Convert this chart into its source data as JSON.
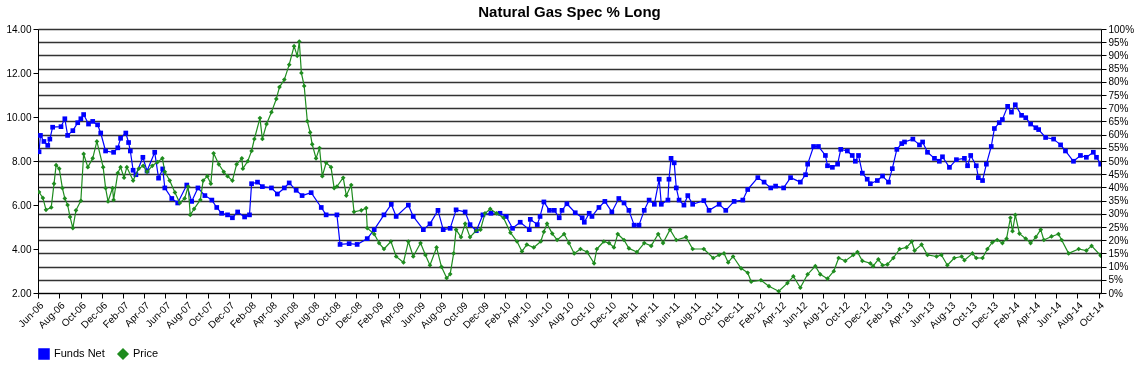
{
  "chart_data": {
    "type": "line",
    "title": "Natural Gas Spec % Long",
    "xlim": [
      "2006-06-01",
      "2014-10-08"
    ],
    "xticks": [
      {
        "value": "2006-06-01",
        "label": "Jun-06"
      },
      {
        "value": "2006-08-01",
        "label": "Aug-06"
      },
      {
        "value": "2006-10-01",
        "label": "Oct-06"
      },
      {
        "value": "2006-12-01",
        "label": "Dec-06"
      },
      {
        "value": "2007-02-01",
        "label": "Feb-07"
      },
      {
        "value": "2007-04-01",
        "label": "Apr-07"
      },
      {
        "value": "2007-06-01",
        "label": "Jun-07"
      },
      {
        "value": "2007-08-01",
        "label": "Aug-07"
      },
      {
        "value": "2007-10-01",
        "label": "Oct-07"
      },
      {
        "value": "2007-12-01",
        "label": "Dec-07"
      },
      {
        "value": "2008-02-01",
        "label": "Feb-08"
      },
      {
        "value": "2008-04-01",
        "label": "Apr-08"
      },
      {
        "value": "2008-06-01",
        "label": "Jun-08"
      },
      {
        "value": "2008-08-01",
        "label": "Aug-08"
      },
      {
        "value": "2008-10-01",
        "label": "Oct-08"
      },
      {
        "value": "2008-12-01",
        "label": "Dec-08"
      },
      {
        "value": "2009-02-01",
        "label": "Feb-09"
      },
      {
        "value": "2009-04-01",
        "label": "Apr-09"
      },
      {
        "value": "2009-06-01",
        "label": "Jun-09"
      },
      {
        "value": "2009-08-01",
        "label": "Aug-09"
      },
      {
        "value": "2009-10-01",
        "label": "Oct-09"
      },
      {
        "value": "2009-12-01",
        "label": "Dec-09"
      },
      {
        "value": "2010-02-01",
        "label": "Feb-10"
      },
      {
        "value": "2010-04-01",
        "label": "Apr-10"
      },
      {
        "value": "2010-06-01",
        "label": "Jun-10"
      },
      {
        "value": "2010-08-01",
        "label": "Aug-10"
      },
      {
        "value": "2010-10-01",
        "label": "Oct-10"
      },
      {
        "value": "2010-12-01",
        "label": "Dec-10"
      },
      {
        "value": "2011-02-01",
        "label": "Feb-11"
      },
      {
        "value": "2011-04-01",
        "label": "Apr-11"
      },
      {
        "value": "2011-06-01",
        "label": "Jun-11"
      },
      {
        "value": "2011-08-01",
        "label": "Aug-11"
      },
      {
        "value": "2011-10-01",
        "label": "Oct-11"
      },
      {
        "value": "2011-12-01",
        "label": "Dec-11"
      },
      {
        "value": "2012-02-01",
        "label": "Feb-12"
      },
      {
        "value": "2012-04-01",
        "label": "Apr-12"
      },
      {
        "value": "2012-06-01",
        "label": "Jun-12"
      },
      {
        "value": "2012-08-01",
        "label": "Aug-12"
      },
      {
        "value": "2012-10-01",
        "label": "Oct-12"
      },
      {
        "value": "2012-12-01",
        "label": "Dec-12"
      },
      {
        "value": "2013-02-01",
        "label": "Feb-13"
      },
      {
        "value": "2013-04-01",
        "label": "Apr-13"
      },
      {
        "value": "2013-06-01",
        "label": "Jun-13"
      },
      {
        "value": "2013-08-01",
        "label": "Aug-13"
      },
      {
        "value": "2013-10-01",
        "label": "Oct-13"
      },
      {
        "value": "2013-12-01",
        "label": "Dec-13"
      },
      {
        "value": "2014-02-01",
        "label": "Feb-14"
      },
      {
        "value": "2014-04-01",
        "label": "Apr-14"
      },
      {
        "value": "2014-06-01",
        "label": "Jun-14"
      },
      {
        "value": "2014-08-01",
        "label": "Aug-14"
      },
      {
        "value": "2014-10-01",
        "label": "Oct-14"
      }
    ],
    "ylim": [
      2,
      14
    ],
    "yticks": [
      {
        "value": 2,
        "label": "2.00"
      },
      {
        "value": 4,
        "label": "4.00"
      },
      {
        "value": 6,
        "label": "6.00"
      },
      {
        "value": 8,
        "label": "8.00"
      },
      {
        "value": 10,
        "label": "10.00"
      },
      {
        "value": 12,
        "label": "12.00"
      },
      {
        "value": 14,
        "label": "14.00"
      }
    ],
    "y2lim": [
      0,
      100
    ],
    "y2ticks": [
      {
        "value": 0,
        "label": "0%"
      },
      {
        "value": 5,
        "label": "5%"
      },
      {
        "value": 10,
        "label": "10%"
      },
      {
        "value": 15,
        "label": "15%"
      },
      {
        "value": 20,
        "label": "20%"
      },
      {
        "value": 25,
        "label": "25%"
      },
      {
        "value": 30,
        "label": "30%"
      },
      {
        "value": 35,
        "label": "35%"
      },
      {
        "value": 40,
        "label": "40%"
      },
      {
        "value": 45,
        "label": "45%"
      },
      {
        "value": 50,
        "label": "50%"
      },
      {
        "value": 55,
        "label": "55%"
      },
      {
        "value": 60,
        "label": "60%"
      },
      {
        "value": 65,
        "label": "65%"
      },
      {
        "value": 70,
        "label": "70%"
      },
      {
        "value": 75,
        "label": "75%"
      },
      {
        "value": 80,
        "label": "80%"
      },
      {
        "value": 85,
        "label": "85%"
      },
      {
        "value": 90,
        "label": "90%"
      },
      {
        "value": 95,
        "label": "95%"
      },
      {
        "value": 100,
        "label": "100%"
      }
    ],
    "grid": "y2",
    "legend": "bottom",
    "series": [
      {
        "name": "Funds Net",
        "color": "#0000ff",
        "axis": "y2",
        "marker": "square",
        "x": [
          "2006-06-04",
          "2006-06-08",
          "2006-06-18",
          "2006-06-29",
          "2006-07-05",
          "2006-07-13",
          "2006-08-06",
          "2006-08-17",
          "2006-08-25",
          "2006-09-09",
          "2006-09-23",
          "2006-10-02",
          "2006-10-10",
          "2006-10-24",
          "2006-11-05",
          "2006-11-19",
          "2006-11-28",
          "2006-12-12",
          "2007-01-04",
          "2007-01-16",
          "2007-01-24",
          "2007-02-08",
          "2007-02-16",
          "2007-02-21",
          "2007-03-01",
          "2007-03-09",
          "2007-03-29",
          "2007-04-10",
          "2007-05-02",
          "2007-05-13",
          "2007-05-25",
          "2007-05-31",
          "2007-06-20",
          "2007-07-07",
          "2007-08-02",
          "2007-08-16",
          "2007-09-03",
          "2007-09-23",
          "2007-10-13",
          "2007-10-27",
          "2007-11-10",
          "2007-11-27",
          "2007-12-11",
          "2007-12-26",
          "2008-01-15",
          "2008-01-29",
          "2008-02-04",
          "2008-02-21",
          "2008-03-06",
          "2008-04-01",
          "2008-04-18",
          "2008-05-08",
          "2008-05-22",
          "2008-06-11",
          "2008-06-28",
          "2008-07-24",
          "2008-08-22",
          "2008-09-05",
          "2008-10-06",
          "2008-10-15",
          "2008-11-10",
          "2008-12-03",
          "2009-01-01",
          "2009-01-21",
          "2009-02-18",
          "2009-03-11",
          "2009-03-25",
          "2009-04-29",
          "2009-05-13",
          "2009-06-11",
          "2009-06-30",
          "2009-07-23",
          "2009-08-07",
          "2009-08-27",
          "2009-09-13",
          "2009-10-09",
          "2009-10-23",
          "2009-11-10",
          "2009-11-29",
          "2009-12-22",
          "2010-01-17",
          "2010-02-04",
          "2010-02-22",
          "2010-03-16",
          "2010-04-11",
          "2010-04-14",
          "2010-05-04",
          "2010-05-12",
          "2010-05-23",
          "2010-06-08",
          "2010-06-22",
          "2010-07-06",
          "2010-07-14",
          "2010-07-28",
          "2010-08-21",
          "2010-09-10",
          "2010-09-16",
          "2010-09-30",
          "2010-10-08",
          "2010-10-28",
          "2010-11-14",
          "2010-12-04",
          "2010-12-24",
          "2011-01-08",
          "2011-01-22",
          "2011-02-06",
          "2011-02-20",
          "2011-03-07",
          "2011-03-21",
          "2011-04-05",
          "2011-04-19",
          "2011-04-25",
          "2011-05-14",
          "2011-05-17",
          "2011-05-23",
          "2011-06-01",
          "2011-06-07",
          "2011-06-15",
          "2011-06-29",
          "2011-07-10",
          "2011-07-24",
          "2011-08-25",
          "2011-09-09",
          "2011-10-08",
          "2011-10-27",
          "2011-11-20",
          "2011-12-15",
          "2011-12-29",
          "2012-01-27",
          "2012-02-14",
          "2012-03-04",
          "2012-03-18",
          "2012-04-10",
          "2012-04-30",
          "2012-05-28",
          "2012-06-12",
          "2012-06-18",
          "2012-07-05",
          "2012-07-19",
          "2012-08-08",
          "2012-08-14",
          "2012-08-28",
          "2012-09-12",
          "2012-09-21",
          "2012-10-10",
          "2012-10-24",
          "2012-11-02",
          "2012-11-11",
          "2012-11-22",
          "2012-12-06",
          "2012-12-15",
          "2013-01-04",
          "2013-01-19",
          "2013-02-05",
          "2013-02-16",
          "2013-03-01",
          "2013-03-15",
          "2013-03-23",
          "2013-04-16",
          "2013-05-05",
          "2013-05-14",
          "2013-05-28",
          "2013-06-17",
          "2013-07-01",
          "2013-07-10",
          "2013-07-30",
          "2013-08-19",
          "2013-09-11",
          "2013-09-20",
          "2013-09-29",
          "2013-10-15",
          "2013-10-21",
          "2013-11-02",
          "2013-11-13",
          "2013-11-27",
          "2013-12-06",
          "2013-12-20",
          "2013-12-29",
          "2014-01-13",
          "2014-01-24",
          "2014-02-04",
          "2014-02-22",
          "2014-03-06",
          "2014-03-20",
          "2014-04-04",
          "2014-04-12",
          "2014-05-02",
          "2014-05-25",
          "2014-06-14",
          "2014-06-28",
          "2014-07-21",
          "2014-08-10",
          "2014-08-27",
          "2014-09-16",
          "2014-09-25",
          "2014-10-07"
        ],
        "values": [
          53.5,
          59.7,
          57.4,
          55.9,
          58.3,
          62.8,
          63,
          66,
          59.7,
          61.5,
          64.5,
          66,
          67.6,
          64,
          65,
          63.7,
          60.6,
          53.8,
          53.3,
          55,
          58.6,
          60.6,
          57,
          53.8,
          46.5,
          44.8,
          51.4,
          46.2,
          53.3,
          43.5,
          47,
          39.8,
          35.8,
          34.1,
          40.9,
          34.7,
          39.8,
          36.9,
          35.2,
          32.4,
          30.2,
          29.6,
          28.5,
          30.7,
          28.8,
          29.6,
          41.4,
          42,
          40.3,
          39.8,
          37.5,
          39.8,
          41.7,
          38.9,
          36.9,
          38,
          32.4,
          29.6,
          29.6,
          18.4,
          18.7,
          18.4,
          20.6,
          24,
          29.6,
          33.6,
          29,
          33.3,
          29,
          24,
          26.2,
          31.3,
          24,
          24.5,
          31.5,
          30.7,
          25.9,
          23.6,
          29.6,
          30.2,
          30.2,
          29,
          24.5,
          26.8,
          24,
          27.9,
          25.9,
          29,
          34.5,
          31.3,
          31.3,
          28.5,
          31.3,
          33.8,
          30.4,
          28.5,
          26.8,
          30.2,
          29,
          32.4,
          34.7,
          30.7,
          35.8,
          34.1,
          31.3,
          25.7,
          25.7,
          31.3,
          35.2,
          33.6,
          43.1,
          33.6,
          35.2,
          43.1,
          51,
          49.3,
          39.8,
          35.2,
          33.3,
          36.9,
          33.6,
          35,
          31.3,
          33.6,
          31.3,
          34.7,
          35.2,
          39.2,
          43.7,
          42,
          39.8,
          40.5,
          39.8,
          43.7,
          42,
          44.8,
          48.8,
          55.5,
          55.5,
          52.1,
          48.2,
          47.6,
          48.8,
          54.4,
          53.8,
          52.1,
          49.9,
          52.1,
          45.4,
          43.1,
          41.4,
          42.6,
          44.3,
          42,
          47.1,
          54.4,
          56.6,
          57.2,
          58.3,
          56.1,
          57.2,
          53.3,
          51,
          49.9,
          51.6,
          47.6,
          50.5,
          51,
          48.2,
          52.1,
          48.2,
          43.7,
          42.6,
          48.8,
          55.5,
          62.3,
          64.5,
          65.7,
          70.7,
          68.5,
          71.3,
          67.3,
          66.4,
          64,
          62.6,
          61.9,
          58.9,
          58.3,
          56.1,
          53.8,
          49.9,
          52.1,
          51.4,
          53.3,
          51.4,
          48.8
        ]
      },
      {
        "name": "Price",
        "color": "#1f8c1f",
        "axis": "y",
        "marker": "diamond",
        "x": [
          "2006-06-04",
          "2006-06-15",
          "2006-06-24",
          "2006-07-09",
          "2006-07-17",
          "2006-07-23",
          "2006-08-01",
          "2006-08-10",
          "2006-08-17",
          "2006-08-25",
          "2006-09-01",
          "2006-09-09",
          "2006-09-18",
          "2006-10-02",
          "2006-10-10",
          "2006-10-22",
          "2006-11-05",
          "2006-11-17",
          "2006-12-05",
          "2006-12-12",
          "2006-12-19",
          "2007-01-01",
          "2007-01-04",
          "2007-01-16",
          "2007-01-24",
          "2007-02-03",
          "2007-02-11",
          "2007-03-01",
          "2007-03-17",
          "2007-03-30",
          "2007-04-10",
          "2007-04-25",
          "2007-05-10",
          "2007-05-24",
          "2007-05-31",
          "2007-06-14",
          "2007-06-29",
          "2007-07-13",
          "2007-07-27",
          "2007-08-06",
          "2007-08-12",
          "2007-08-23",
          "2007-09-10",
          "2007-09-18",
          "2007-09-30",
          "2007-10-10",
          "2007-10-18",
          "2007-11-02",
          "2007-11-16",
          "2007-11-27",
          "2007-12-11",
          "2007-12-23",
          "2008-01-07",
          "2008-01-10",
          "2008-01-24",
          "2008-02-04",
          "2008-02-12",
          "2008-02-28",
          "2008-03-06",
          "2008-03-18",
          "2008-04-01",
          "2008-04-15",
          "2008-04-24",
          "2008-05-08",
          "2008-05-22",
          "2008-06-05",
          "2008-06-14",
          "2008-06-20",
          "2008-06-26",
          "2008-07-04",
          "2008-07-13",
          "2008-07-21",
          "2008-07-27",
          "2008-08-07",
          "2008-08-17",
          "2008-08-25",
          "2008-09-05",
          "2008-09-19",
          "2008-09-28",
          "2008-10-06",
          "2008-10-24",
          "2008-11-02",
          "2008-11-16",
          "2008-11-24",
          "2008-12-15",
          "2008-12-29",
          "2009-01-01",
          "2009-01-21",
          "2009-02-04",
          "2009-02-18",
          "2009-03-10",
          "2009-03-25",
          "2009-04-15",
          "2009-04-29",
          "2009-05-13",
          "2009-06-03",
          "2009-06-17",
          "2009-06-30",
          "2009-07-19",
          "2009-08-02",
          "2009-08-17",
          "2009-08-27",
          "2009-09-06",
          "2009-09-13",
          "2009-09-27",
          "2009-10-09",
          "2009-10-23",
          "2009-11-10",
          "2009-11-22",
          "2009-12-05",
          "2009-12-20",
          "2010-01-07",
          "2010-01-27",
          "2010-02-16",
          "2010-03-07",
          "2010-03-21",
          "2010-04-04",
          "2010-04-24",
          "2010-05-14",
          "2010-05-23",
          "2010-06-01",
          "2010-06-16",
          "2010-06-30",
          "2010-07-20",
          "2010-08-03",
          "2010-08-18",
          "2010-09-05",
          "2010-09-24",
          "2010-10-14",
          "2010-10-22",
          "2010-11-11",
          "2010-11-26",
          "2010-12-10",
          "2010-12-21",
          "2011-01-08",
          "2011-01-22",
          "2011-02-14",
          "2011-03-07",
          "2011-03-27",
          "2011-04-16",
          "2011-04-30",
          "2011-05-20",
          "2011-06-07",
          "2011-07-05",
          "2011-07-24",
          "2011-08-25",
          "2011-09-21",
          "2011-10-08",
          "2011-10-22",
          "2011-11-03",
          "2011-11-17",
          "2011-12-10",
          "2011-12-29",
          "2012-01-08",
          "2012-02-05",
          "2012-02-28",
          "2012-03-27",
          "2012-04-21",
          "2012-05-08",
          "2012-05-28",
          "2012-06-18",
          "2012-07-10",
          "2012-07-24",
          "2012-08-14",
          "2012-09-01",
          "2012-09-15",
          "2012-10-04",
          "2012-10-27",
          "2012-11-08",
          "2012-11-22",
          "2012-12-15",
          "2012-12-23",
          "2013-01-07",
          "2013-01-19",
          "2013-02-02",
          "2013-02-19",
          "2013-03-09",
          "2013-03-29",
          "2013-04-13",
          "2013-04-21",
          "2013-05-11",
          "2013-05-28",
          "2013-06-23",
          "2013-07-07",
          "2013-07-24",
          "2013-08-13",
          "2013-09-03",
          "2013-09-11",
          "2013-10-04",
          "2013-10-15",
          "2013-11-02",
          "2013-11-16",
          "2013-11-30",
          "2013-12-14",
          "2013-12-29",
          "2014-01-10",
          "2014-01-21",
          "2014-01-27",
          "2014-02-04",
          "2014-02-16",
          "2014-03-06",
          "2014-03-20",
          "2014-04-04",
          "2014-04-18",
          "2014-04-27",
          "2014-05-19",
          "2014-06-08",
          "2014-06-17",
          "2014-07-07",
          "2014-08-05",
          "2014-08-27",
          "2014-09-11",
          "2014-10-07"
        ],
        "values": [
          6.59,
          6.32,
          5.78,
          5.89,
          6.97,
          7.81,
          7.65,
          6.77,
          6.3,
          6.0,
          5.46,
          4.95,
          5.76,
          6.19,
          8.32,
          7.72,
          8.12,
          8.89,
          7.72,
          6.77,
          6.16,
          6.77,
          6.23,
          7.45,
          7.72,
          7.24,
          7.72,
          7.11,
          7.65,
          7.78,
          7.51,
          7.78,
          7.95,
          8.12,
          7.51,
          7.11,
          6.57,
          6.09,
          6.3,
          6.84,
          5.55,
          5.82,
          6.23,
          7.11,
          7.31,
          6.97,
          8.35,
          7.85,
          7.51,
          7.31,
          7.11,
          7.85,
          8.12,
          7.65,
          7.99,
          8.46,
          9.0,
          9.95,
          9.0,
          9.68,
          10.22,
          10.82,
          11.36,
          11.7,
          12.38,
          13.22,
          12.78,
          13.43,
          12.0,
          11.41,
          9.81,
          9.3,
          8.76,
          8.12,
          8.59,
          7.31,
          7.92,
          7.72,
          6.77,
          6.84,
          7.24,
          6.43,
          6.91,
          5.69,
          5.76,
          5.86,
          4.95,
          4.68,
          4.27,
          4.0,
          4.34,
          3.66,
          3.39,
          4.34,
          3.66,
          4.27,
          3.73,
          3.26,
          4.07,
          3.19,
          2.68,
          2.86,
          3.8,
          4.88,
          4.54,
          5.15,
          4.54,
          4.84,
          4.88,
          5.62,
          5.82,
          5.62,
          5.42,
          4.74,
          4.34,
          3.89,
          4.2,
          4.07,
          4.34,
          4.78,
          5.15,
          4.7,
          4.41,
          4.68,
          4.27,
          3.8,
          4.0,
          3.86,
          3.35,
          4.0,
          4.34,
          4.27,
          4.07,
          4.68,
          4.41,
          4.03,
          3.86,
          4.27,
          4.14,
          4.68,
          4.27,
          4.88,
          4.41,
          4.54,
          4.0,
          4.0,
          3.59,
          3.73,
          3.8,
          3.39,
          3.66,
          3.12,
          2.92,
          2.51,
          2.58,
          2.31,
          2.08,
          2.45,
          2.76,
          2.24,
          2.85,
          3.22,
          2.85,
          2.65,
          2.99,
          3.59,
          3.46,
          3.73,
          3.86,
          3.46,
          3.35,
          3.22,
          3.53,
          3.26,
          3.3,
          3.59,
          4.0,
          4.07,
          4.34,
          3.93,
          4.2,
          3.73,
          3.66,
          3.73,
          3.26,
          3.59,
          3.66,
          3.49,
          3.8,
          3.59,
          3.59,
          4.0,
          4.3,
          4.41,
          4.27,
          4.47,
          5.42,
          4.81,
          5.55,
          4.7,
          4.47,
          4.27,
          4.54,
          4.88,
          4.41,
          4.57,
          4.68,
          4.41,
          3.8,
          4.0,
          3.93,
          4.14,
          3.7
        ]
      }
    ]
  }
}
